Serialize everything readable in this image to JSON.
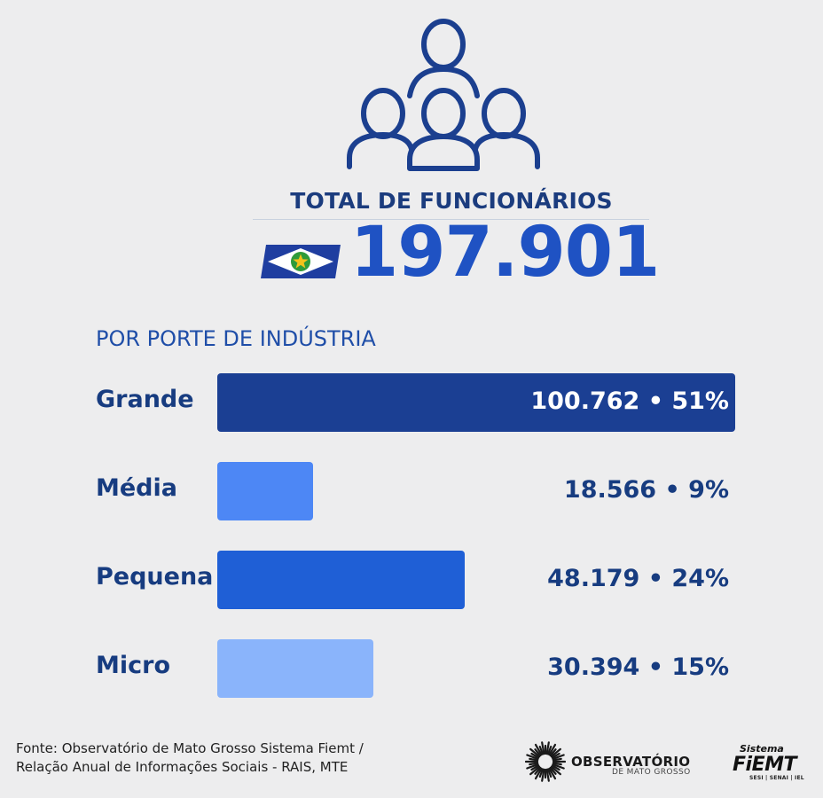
{
  "header": {
    "title": "TOTAL DE FUNCIONÁRIOS",
    "total": "197.901",
    "flag_colors": [
      "#1f3ea0",
      "#ffffff",
      "#2e9b3a",
      "#f3c21b"
    ]
  },
  "chart_data": {
    "type": "bar",
    "orientation": "horizontal",
    "title": "POR PORTE DE INDÚSTRIA",
    "categories": [
      "Grande",
      "Média",
      "Pequena",
      "Micro"
    ],
    "values": [
      100762,
      18566,
      48179,
      30394
    ],
    "percentages": [
      51,
      9,
      24,
      15
    ],
    "value_labels": [
      "100.762 • 51%",
      "18.566 • 9%",
      "48.179 • 24%",
      "30.394 • 15%"
    ],
    "colors": [
      "#1b3f93",
      "#4d87f5",
      "#1f5fd6",
      "#8ab4fb"
    ],
    "xlim": [
      0,
      100762
    ],
    "grid": false,
    "legend": "none"
  },
  "footer": {
    "source_line1": "Fonte: Observatório de Mato Grosso Sistema Fiemt /",
    "source_line2": "Relação Anual de Informações Sociais - RAIS, MTE",
    "logo1_name": "OBSERVATÓRIO",
    "logo1_sub": "DE MATO GROSSO",
    "logo2_top": "Sistema",
    "logo2_name": "FiEMT",
    "logo2_sub": "SESI | SENAI | IEL"
  }
}
